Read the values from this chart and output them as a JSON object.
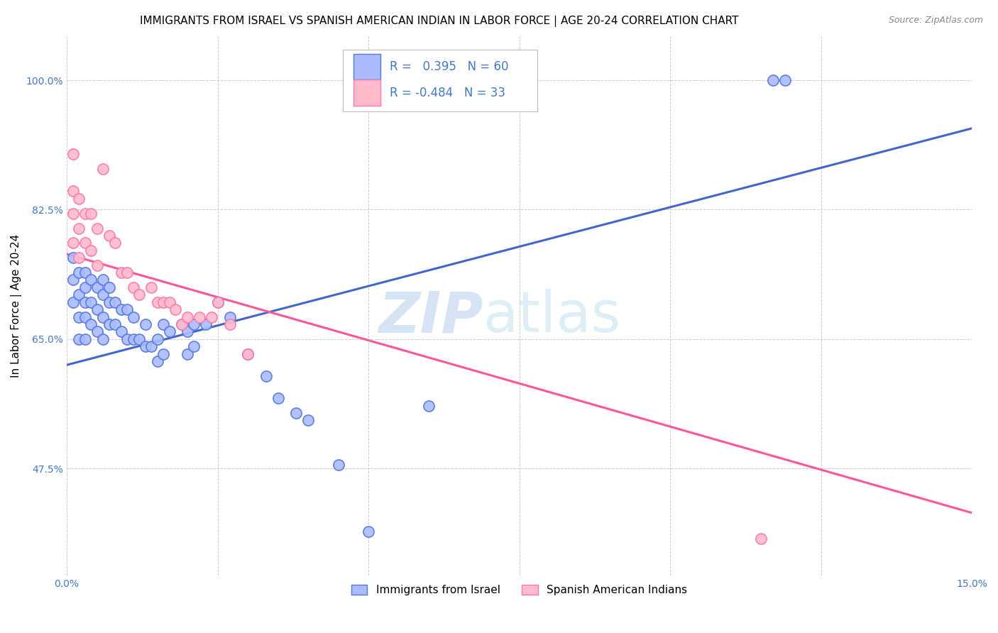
{
  "title": "IMMIGRANTS FROM ISRAEL VS SPANISH AMERICAN INDIAN IN LABOR FORCE | AGE 20-24 CORRELATION CHART",
  "source": "Source: ZipAtlas.com",
  "ylabel": "In Labor Force | Age 20-24",
  "xmin": 0.0,
  "xmax": 0.15,
  "ymin": 0.33,
  "ymax": 1.06,
  "yticks": [
    0.475,
    0.65,
    0.825,
    1.0
  ],
  "ytick_labels": [
    "47.5%",
    "65.0%",
    "82.5%",
    "100.0%"
  ],
  "xticks": [
    0.0,
    0.025,
    0.05,
    0.075,
    0.1,
    0.125,
    0.15
  ],
  "xtick_labels": [
    "0.0%",
    "",
    "",
    "",
    "",
    "",
    "15.0%"
  ],
  "blue_scatter_x": [
    0.117,
    0.119,
    0.001,
    0.001,
    0.001,
    0.002,
    0.002,
    0.002,
    0.002,
    0.003,
    0.003,
    0.003,
    0.003,
    0.003,
    0.004,
    0.004,
    0.004,
    0.005,
    0.005,
    0.005,
    0.006,
    0.006,
    0.006,
    0.006,
    0.007,
    0.007,
    0.007,
    0.008,
    0.008,
    0.009,
    0.009,
    0.01,
    0.01,
    0.011,
    0.011,
    0.012,
    0.013,
    0.013,
    0.014,
    0.015,
    0.015,
    0.016,
    0.016,
    0.017,
    0.019,
    0.02,
    0.02,
    0.021,
    0.021,
    0.023,
    0.025,
    0.027,
    0.03,
    0.033,
    0.035,
    0.038,
    0.04,
    0.045,
    0.05,
    0.06
  ],
  "blue_scatter_y": [
    1.0,
    1.0,
    0.76,
    0.73,
    0.7,
    0.74,
    0.71,
    0.68,
    0.65,
    0.74,
    0.72,
    0.7,
    0.68,
    0.65,
    0.73,
    0.7,
    0.67,
    0.72,
    0.69,
    0.66,
    0.73,
    0.71,
    0.68,
    0.65,
    0.72,
    0.7,
    0.67,
    0.7,
    0.67,
    0.69,
    0.66,
    0.69,
    0.65,
    0.68,
    0.65,
    0.65,
    0.67,
    0.64,
    0.64,
    0.65,
    0.62,
    0.67,
    0.63,
    0.66,
    0.67,
    0.66,
    0.63,
    0.67,
    0.64,
    0.67,
    0.7,
    0.68,
    0.63,
    0.6,
    0.57,
    0.55,
    0.54,
    0.48,
    0.39,
    0.56
  ],
  "pink_scatter_x": [
    0.001,
    0.001,
    0.001,
    0.001,
    0.002,
    0.002,
    0.002,
    0.003,
    0.003,
    0.004,
    0.004,
    0.005,
    0.005,
    0.006,
    0.007,
    0.008,
    0.009,
    0.01,
    0.011,
    0.012,
    0.014,
    0.015,
    0.016,
    0.017,
    0.018,
    0.019,
    0.02,
    0.022,
    0.024,
    0.025,
    0.027,
    0.03,
    0.115
  ],
  "pink_scatter_y": [
    0.9,
    0.85,
    0.82,
    0.78,
    0.84,
    0.8,
    0.76,
    0.82,
    0.78,
    0.82,
    0.77,
    0.8,
    0.75,
    0.88,
    0.79,
    0.78,
    0.74,
    0.74,
    0.72,
    0.71,
    0.72,
    0.7,
    0.7,
    0.7,
    0.69,
    0.67,
    0.68,
    0.68,
    0.68,
    0.7,
    0.67,
    0.63,
    0.38
  ],
  "blue_line_x": [
    0.0,
    0.15
  ],
  "blue_line_y": [
    0.615,
    0.935
  ],
  "pink_line_x": [
    0.0,
    0.15
  ],
  "pink_line_y": [
    0.765,
    0.415
  ],
  "blue_dot_color": "#aabbff",
  "blue_edge_color": "#5577dd",
  "pink_dot_color": "#ffbbcc",
  "pink_edge_color": "#ff77aa",
  "blue_line_color": "#4466cc",
  "pink_line_color": "#ff5599",
  "r_blue": "0.395",
  "n_blue": "60",
  "r_pink": "-0.484",
  "n_pink": "33",
  "watermark_zip": "ZIP",
  "watermark_atlas": "atlas",
  "background_color": "#ffffff",
  "grid_color": "#cccccc",
  "title_fontsize": 11,
  "axis_label_fontsize": 11,
  "tick_fontsize": 10,
  "legend_label_blue": "Immigrants from Israel",
  "legend_label_pink": "Spanish American Indians",
  "tick_color": "#4477cc"
}
